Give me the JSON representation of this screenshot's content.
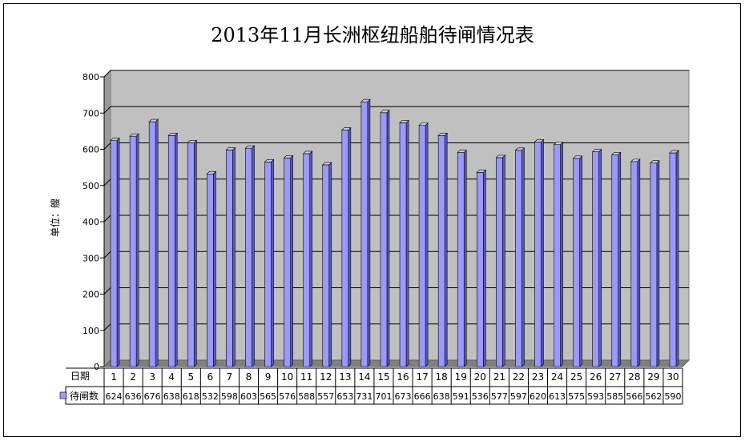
{
  "chart_data": {
    "type": "bar",
    "title": "2013年11月长洲枢纽船舶待闸情况表",
    "ylabel": "单位：艘",
    "xlabel": "日期",
    "ylim": [
      0,
      800
    ],
    "yticks": [
      0,
      100,
      200,
      300,
      400,
      500,
      600,
      700,
      800
    ],
    "grid": true,
    "categories": [
      "1",
      "2",
      "3",
      "4",
      "5",
      "6",
      "7",
      "8",
      "9",
      "10",
      "11",
      "12",
      "13",
      "14",
      "15",
      "16",
      "17",
      "18",
      "19",
      "20",
      "21",
      "22",
      "23",
      "24",
      "25",
      "26",
      "27",
      "28",
      "29",
      "30"
    ],
    "series": [
      {
        "name": "待闸数",
        "color": "#9999ff",
        "values": [
          624,
          636,
          676,
          638,
          618,
          532,
          598,
          603,
          565,
          576,
          588,
          557,
          653,
          731,
          701,
          673,
          666,
          638,
          591,
          536,
          577,
          597,
          620,
          613,
          575,
          593,
          585,
          566,
          562,
          590
        ]
      }
    ]
  }
}
